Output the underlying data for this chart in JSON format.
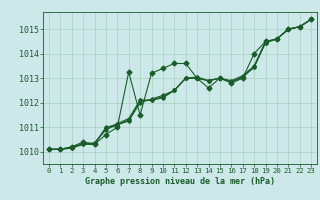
{
  "background_color": "#cce8e8",
  "grid_color": "#aad0c0",
  "line_color": "#1a5c2a",
  "xlabel": "Graphe pression niveau de la mer (hPa)",
  "xlim": [
    -0.5,
    23.5
  ],
  "ylim": [
    1009.5,
    1015.7
  ],
  "yticks": [
    1010,
    1011,
    1012,
    1013,
    1014,
    1015
  ],
  "xticks": [
    0,
    1,
    2,
    3,
    4,
    5,
    6,
    7,
    8,
    9,
    10,
    11,
    12,
    13,
    14,
    15,
    16,
    17,
    18,
    19,
    20,
    21,
    22,
    23
  ],
  "series": [
    [
      1010.1,
      1010.1,
      1010.2,
      1010.4,
      1010.3,
      1010.7,
      1011.0,
      1013.25,
      1011.5,
      1013.2,
      1013.4,
      1013.6,
      1013.6,
      1013.0,
      1012.6,
      1013.0,
      1012.8,
      1013.0,
      1014.0,
      1014.5,
      1014.6,
      1015.0,
      1015.1,
      1015.4
    ],
    [
      1010.1,
      1010.1,
      1010.2,
      1010.3,
      1010.3,
      1011.0,
      1011.1,
      1011.3,
      1012.1,
      1012.1,
      1012.2,
      1012.5,
      1013.0,
      1013.0,
      1012.9,
      1013.0,
      1012.9,
      1013.1,
      1013.5,
      1014.5,
      1014.6,
      1015.0,
      1015.1,
      1015.4
    ],
    [
      1010.1,
      1010.1,
      1010.15,
      1010.3,
      1010.35,
      1010.9,
      1011.1,
      1011.25,
      1012.0,
      1012.15,
      1012.3,
      1012.5,
      1013.0,
      1013.0,
      1012.9,
      1013.0,
      1012.85,
      1013.05,
      1013.45,
      1014.45,
      1014.6,
      1015.0,
      1015.1,
      1015.4
    ],
    [
      1010.1,
      1010.1,
      1010.15,
      1010.35,
      1010.35,
      1010.95,
      1011.15,
      1011.35,
      1012.1,
      1012.1,
      1012.25,
      1012.5,
      1013.0,
      1013.05,
      1012.9,
      1013.0,
      1012.85,
      1013.05,
      1013.45,
      1014.45,
      1014.6,
      1015.0,
      1015.1,
      1015.4
    ]
  ],
  "xlabel_fontsize": 6.0,
  "ytick_fontsize": 6.0,
  "xtick_fontsize": 5.2
}
